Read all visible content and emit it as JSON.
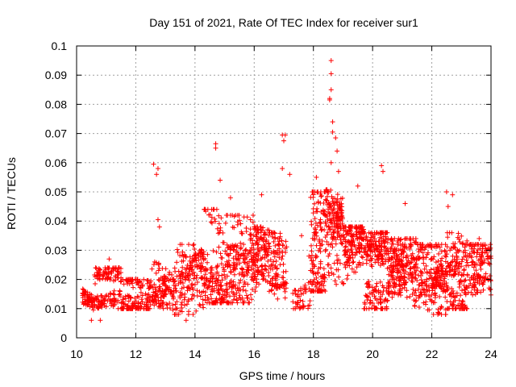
{
  "chart_data": {
    "type": "scatter",
    "title": "Day 151 of 2021, Rate Of TEC Index for receiver sur1",
    "xlabel": "GPS time / hours",
    "ylabel": "ROTI / TECUs",
    "xlim": [
      10,
      24
    ],
    "ylim": [
      0,
      0.1
    ],
    "x_ticks": [
      "10",
      "12",
      "14",
      "16",
      "18",
      "20",
      "22",
      "24"
    ],
    "y_ticks": [
      "0",
      "0.01",
      "0.02",
      "0.03",
      "0.04",
      "0.05",
      "0.06",
      "0.07",
      "0.08",
      "0.09",
      "0.1"
    ],
    "grid": true,
    "marker": "plus",
    "color": "#ff0000",
    "notable_points": [
      {
        "x": 12.6,
        "y": 0.0595
      },
      {
        "x": 12.75,
        "y": 0.058
      },
      {
        "x": 12.7,
        "y": 0.056
      },
      {
        "x": 12.75,
        "y": 0.0405
      },
      {
        "x": 12.8,
        "y": 0.038
      },
      {
        "x": 14.7,
        "y": 0.0665
      },
      {
        "x": 14.7,
        "y": 0.065
      },
      {
        "x": 14.85,
        "y": 0.054
      },
      {
        "x": 15.2,
        "y": 0.048
      },
      {
        "x": 16.25,
        "y": 0.049
      },
      {
        "x": 16.95,
        "y": 0.0695
      },
      {
        "x": 17.05,
        "y": 0.0695
      },
      {
        "x": 17.0,
        "y": 0.0675
      },
      {
        "x": 16.95,
        "y": 0.058
      },
      {
        "x": 17.2,
        "y": 0.056
      },
      {
        "x": 18.6,
        "y": 0.095
      },
      {
        "x": 18.6,
        "y": 0.0905
      },
      {
        "x": 18.6,
        "y": 0.085
      },
      {
        "x": 18.55,
        "y": 0.0815
      },
      {
        "x": 18.55,
        "y": 0.082
      },
      {
        "x": 18.65,
        "y": 0.074
      },
      {
        "x": 18.65,
        "y": 0.0705
      },
      {
        "x": 18.75,
        "y": 0.0685
      },
      {
        "x": 18.8,
        "y": 0.064
      },
      {
        "x": 18.6,
        "y": 0.06
      },
      {
        "x": 18.85,
        "y": 0.057
      },
      {
        "x": 20.3,
        "y": 0.059
      },
      {
        "x": 20.35,
        "y": 0.057
      },
      {
        "x": 22.5,
        "y": 0.05
      },
      {
        "x": 22.7,
        "y": 0.049
      },
      {
        "x": 22.55,
        "y": 0.045
      },
      {
        "x": 10.5,
        "y": 0.006
      },
      {
        "x": 10.8,
        "y": 0.006
      },
      {
        "x": 13.7,
        "y": 0.006
      },
      {
        "x": 11.1,
        "y": 0.027
      },
      {
        "x": 17.85,
        "y": 0.028
      },
      {
        "x": 17.6,
        "y": 0.035
      },
      {
        "x": 18.1,
        "y": 0.055
      },
      {
        "x": 19.5,
        "y": 0.052
      },
      {
        "x": 21.1,
        "y": 0.046
      },
      {
        "x": 23.6,
        "y": 0.034
      }
    ],
    "bands": [
      {
        "x": [
          10.2,
          10.6
        ],
        "y_range": [
          0.009,
          0.02
        ],
        "n": 60
      },
      {
        "x": [
          10.6,
          11.5
        ],
        "y_range": [
          0.01,
          0.024
        ],
        "n": 150
      },
      {
        "x": [
          11.5,
          12.5
        ],
        "y_range": [
          0.01,
          0.02
        ],
        "n": 150
      },
      {
        "x": [
          12.5,
          13.3
        ],
        "y_range": [
          0.008,
          0.026
        ],
        "n": 130
      },
      {
        "x": [
          13.3,
          14.3
        ],
        "y_range": [
          0.008,
          0.032
        ],
        "n": 180
      },
      {
        "x": [
          14.3,
          15.0
        ],
        "y_range": [
          0.012,
          0.044
        ],
        "n": 160
      },
      {
        "x": [
          15.0,
          16.0
        ],
        "y_range": [
          0.012,
          0.042
        ],
        "n": 230
      },
      {
        "x": [
          16.0,
          16.5
        ],
        "y_range": [
          0.015,
          0.038
        ],
        "n": 130
      },
      {
        "x": [
          16.5,
          17.1
        ],
        "y_range": [
          0.013,
          0.036
        ],
        "n": 110
      },
      {
        "x": [
          17.3,
          17.9
        ],
        "y_range": [
          0.01,
          0.02
        ],
        "n": 45
      },
      {
        "x": [
          17.9,
          18.4
        ],
        "y_range": [
          0.016,
          0.05
        ],
        "n": 150
      },
      {
        "x": [
          18.4,
          19.0
        ],
        "y_range": [
          0.018,
          0.052
        ],
        "n": 170
      },
      {
        "x": [
          19.0,
          19.7
        ],
        "y_range": [
          0.012,
          0.038
        ],
        "n": 170
      },
      {
        "x": [
          19.7,
          20.5
        ],
        "y_range": [
          0.01,
          0.036
        ],
        "n": 220
      },
      {
        "x": [
          20.5,
          21.5
        ],
        "y_range": [
          0.01,
          0.034
        ],
        "n": 260
      },
      {
        "x": [
          21.5,
          22.5
        ],
        "y_range": [
          0.008,
          0.032
        ],
        "n": 240
      },
      {
        "x": [
          22.5,
          23.2
        ],
        "y_range": [
          0.01,
          0.036
        ],
        "n": 170
      },
      {
        "x": [
          23.2,
          24.0
        ],
        "y_range": [
          0.012,
          0.032
        ],
        "n": 150
      }
    ]
  }
}
